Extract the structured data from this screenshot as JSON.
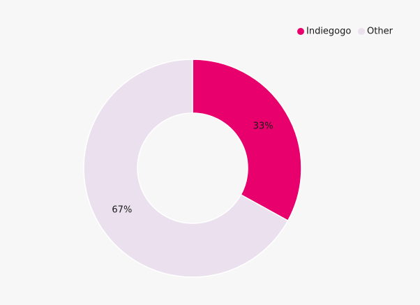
{
  "chart_data": {
    "type": "donut",
    "categories": [
      "Indiegogo",
      "Other"
    ],
    "values": [
      33,
      67
    ],
    "value_labels": [
      "33%",
      "67%"
    ],
    "colors": [
      "#e8006c",
      "#ebe1ee"
    ],
    "legend": "top-right"
  }
}
